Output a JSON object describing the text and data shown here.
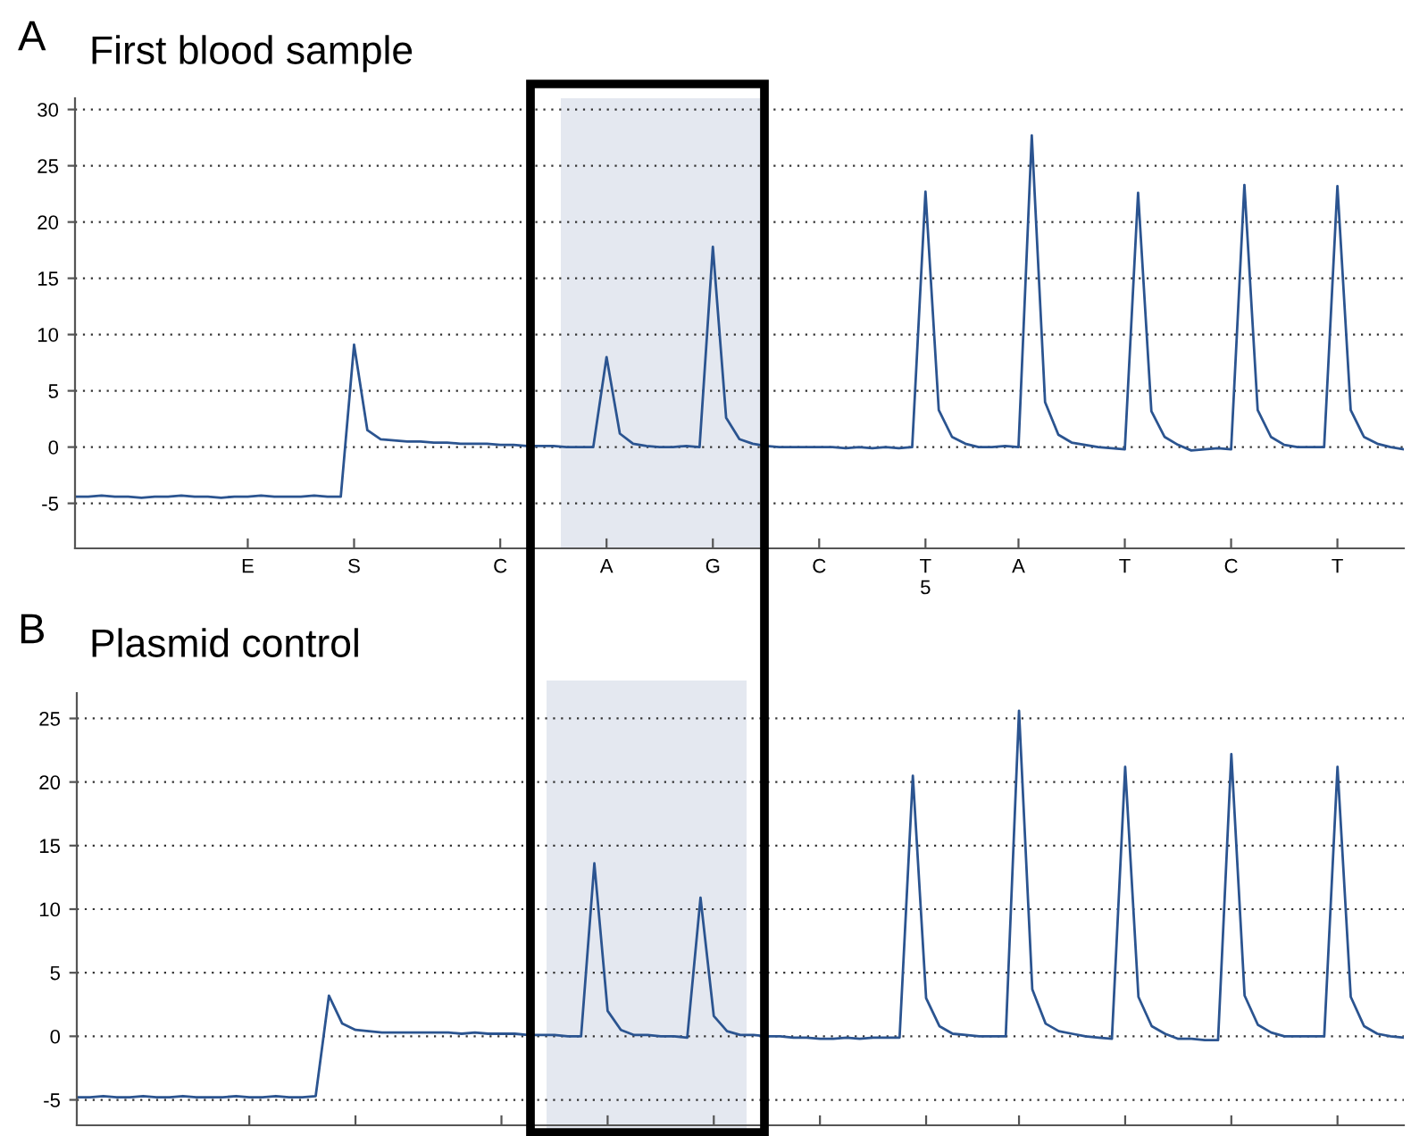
{
  "chart_data": [
    {
      "type": "line",
      "title": "First blood sample",
      "annotations": [
        "A"
      ],
      "grid": "y",
      "marker": "none",
      "line_style": "solid",
      "ylim": [
        -9,
        31
      ],
      "categories": [
        null,
        null,
        null,
        null,
        null,
        null,
        null,
        null,
        null,
        null,
        null,
        null,
        null,
        "E",
        null,
        null,
        null,
        null,
        null,
        null,
        null,
        "S",
        null,
        null,
        null,
        null,
        null,
        null,
        null,
        null,
        null,
        null,
        "C",
        null,
        null,
        null,
        null,
        null,
        null,
        null,
        "A",
        null,
        null,
        null,
        null,
        null,
        null,
        null,
        "G",
        null,
        null,
        null,
        null,
        null,
        null,
        null,
        "C",
        null,
        null,
        null,
        null,
        null,
        null,
        null,
        "T\n5",
        null,
        null,
        null,
        null,
        null,
        null,
        "A",
        null,
        null,
        null,
        null,
        null,
        null,
        null,
        "T",
        null,
        null,
        null,
        null,
        null,
        null,
        null,
        "C",
        null,
        null,
        null,
        null,
        null,
        null,
        null,
        "T",
        null,
        null,
        null,
        null,
        null
      ],
      "yticks": [
        -5,
        0,
        5,
        10,
        15,
        20,
        25,
        30
      ],
      "series": [
        {
          "color": "#2b5490",
          "values": [
            -4.4,
            -4.4,
            -4.3,
            -4.4,
            -4.4,
            -4.5,
            -4.4,
            -4.4,
            -4.3,
            -4.4,
            -4.4,
            -4.5,
            -4.4,
            -4.4,
            -4.3,
            -4.4,
            -4.4,
            -4.4,
            -4.3,
            -4.4,
            -4.4,
            9.1,
            1.5,
            0.7,
            0.6,
            0.5,
            0.5,
            0.4,
            0.4,
            0.3,
            0.3,
            0.3,
            0.2,
            0.2,
            0.1,
            0.1,
            0.1,
            0,
            0,
            0,
            8.0,
            1.2,
            0.3,
            0.1,
            0,
            0,
            0.1,
            0,
            17.8,
            2.6,
            0.7,
            0.3,
            0.1,
            0,
            0,
            0,
            0,
            0,
            -0.1,
            0,
            -0.1,
            0,
            -0.1,
            0,
            22.7,
            3.3,
            0.9,
            0.3,
            0,
            0,
            0.1,
            0,
            27.7,
            4.0,
            1.1,
            0.4,
            0.2,
            0,
            -0.1,
            -0.2,
            22.6,
            3.2,
            0.9,
            0.2,
            -0.3,
            -0.2,
            -0.1,
            -0.2,
            23.3,
            3.3,
            0.9,
            0.2,
            0,
            0,
            0,
            23.2,
            3.3,
            0.9,
            0.3,
            0,
            -0.2
          ]
        }
      ]
    },
    {
      "type": "line",
      "title": "Plasmid control",
      "annotations": [
        "B"
      ],
      "grid": "y",
      "marker": "none",
      "line_style": "solid",
      "tick_labels": "y",
      "ylim": [
        -7,
        27
      ],
      "categories": [
        null,
        null,
        null,
        null,
        null,
        null,
        null,
        null,
        null,
        null,
        null,
        null,
        null,
        null,
        null,
        null,
        null,
        null,
        null,
        null,
        null,
        null,
        null,
        null,
        null,
        null,
        null,
        null,
        null,
        null,
        null,
        null,
        null,
        null,
        null,
        null,
        null,
        null,
        null,
        null,
        null,
        null,
        null,
        null,
        null,
        null,
        null,
        null,
        null,
        null,
        null,
        null,
        null,
        null,
        null,
        null,
        null,
        null,
        null,
        null,
        null,
        null,
        null,
        null,
        null,
        null,
        null,
        null,
        null,
        null,
        null,
        null,
        null,
        null,
        null,
        null,
        null,
        null,
        null,
        null,
        null,
        null,
        null,
        null,
        null,
        null,
        null,
        null,
        null,
        null,
        null,
        null,
        null,
        null,
        null,
        null,
        null,
        null,
        null,
        null,
        null
      ],
      "yticks": [
        -5,
        0,
        5,
        10,
        15,
        20,
        25
      ],
      "series": [
        {
          "color": "#2b5490",
          "values": [
            -4.8,
            -4.8,
            -4.7,
            -4.8,
            -4.8,
            -4.7,
            -4.8,
            -4.8,
            -4.7,
            -4.8,
            -4.8,
            -4.8,
            -4.7,
            -4.8,
            -4.8,
            -4.7,
            -4.8,
            -4.8,
            -4.7,
            3.2,
            1.0,
            0.5,
            0.4,
            0.3,
            0.3,
            0.3,
            0.3,
            0.3,
            0.3,
            0.2,
            0.3,
            0.2,
            0.2,
            0.2,
            0.1,
            0.1,
            0.1,
            0,
            0,
            13.6,
            2.0,
            0.5,
            0.1,
            0.1,
            0,
            0,
            -0.1,
            10.9,
            1.6,
            0.4,
            0.1,
            0.1,
            0,
            0,
            -0.1,
            -0.1,
            -0.2,
            -0.2,
            -0.1,
            -0.2,
            -0.1,
            -0.1,
            -0.1,
            20.5,
            3.0,
            0.8,
            0.2,
            0.1,
            0,
            0,
            0,
            25.6,
            3.7,
            1.0,
            0.4,
            0.2,
            0,
            -0.1,
            -0.2,
            21.2,
            3.1,
            0.8,
            0.2,
            -0.2,
            -0.2,
            -0.3,
            -0.3,
            22.2,
            3.2,
            0.9,
            0.3,
            0,
            0,
            0,
            0,
            21.2,
            3.1,
            0.8,
            0.2,
            0,
            -0.1
          ]
        }
      ]
    }
  ]
}
